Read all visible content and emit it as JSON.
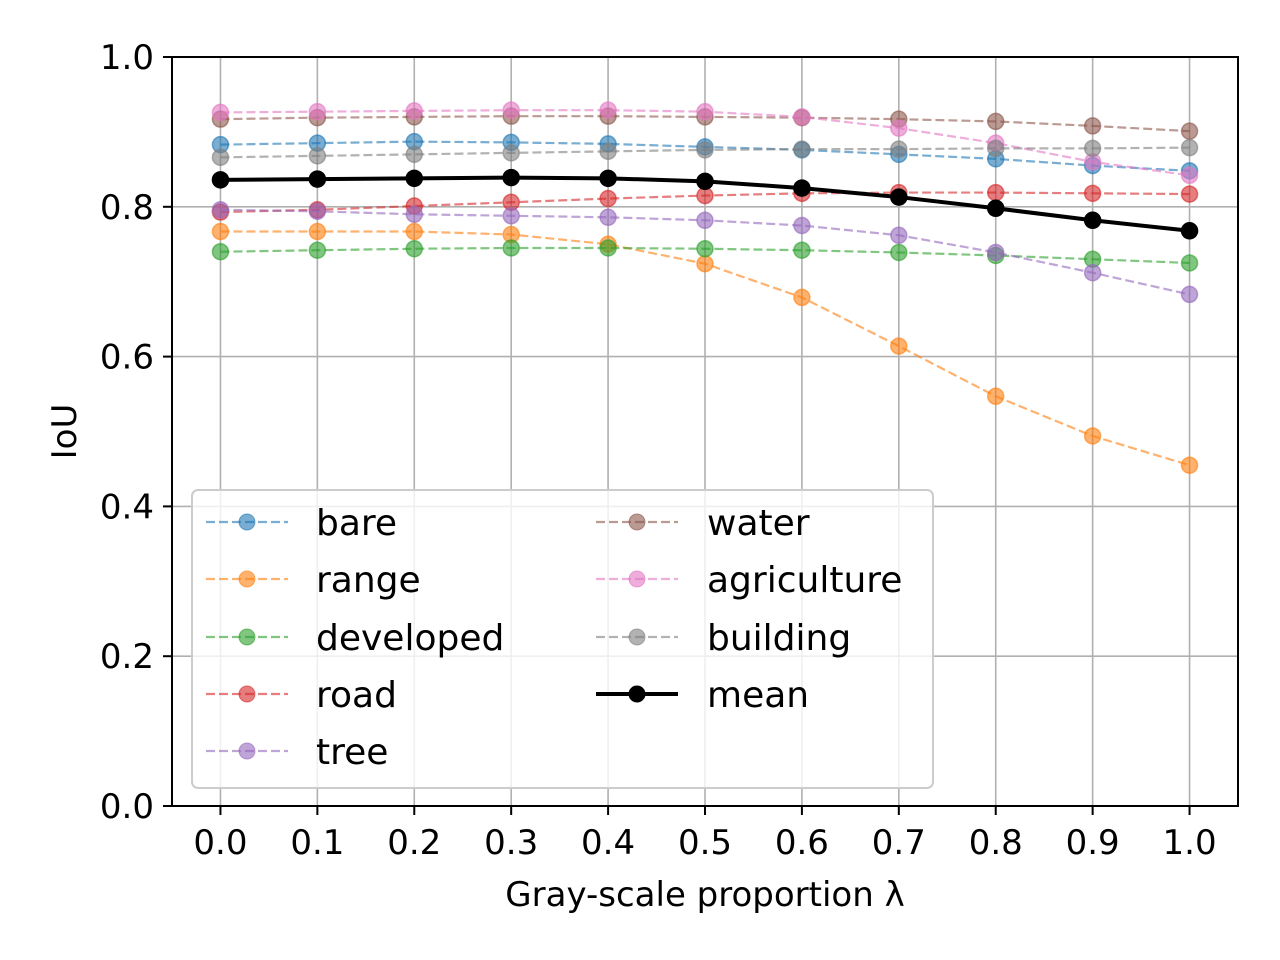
{
  "chart_data": {
    "type": "line",
    "xlabel": "Gray-scale proportion λ",
    "ylabel": "IoU",
    "xlim": [
      -0.05,
      1.05
    ],
    "ylim": [
      0.0,
      1.0
    ],
    "x": [
      0.0,
      0.1,
      0.2,
      0.3,
      0.4,
      0.5,
      0.6,
      0.7,
      0.8,
      0.9,
      1.0
    ],
    "x_tick_labels": [
      "0.0",
      "0.1",
      "0.2",
      "0.3",
      "0.4",
      "0.5",
      "0.6",
      "0.7",
      "0.8",
      "0.9",
      "1.0"
    ],
    "y_ticks": [
      0.0,
      0.2,
      0.4,
      0.6,
      0.8,
      1.0
    ],
    "y_tick_labels": [
      "0.0",
      "0.2",
      "0.4",
      "0.6",
      "0.8",
      "1.0"
    ],
    "grid": true,
    "legend_position": "lower-left",
    "series": [
      {
        "name": "bare",
        "color": "#1f77b4",
        "style": "dashed",
        "values": [
          0.883,
          0.885,
          0.887,
          0.886,
          0.884,
          0.88,
          0.876,
          0.87,
          0.864,
          0.855,
          0.848
        ]
      },
      {
        "name": "range",
        "color": "#ff7f0e",
        "style": "dashed",
        "values": [
          0.767,
          0.767,
          0.767,
          0.763,
          0.75,
          0.724,
          0.679,
          0.614,
          0.547,
          0.494,
          0.455
        ]
      },
      {
        "name": "developed",
        "color": "#2ca02c",
        "style": "dashed",
        "values": [
          0.74,
          0.742,
          0.744,
          0.745,
          0.745,
          0.744,
          0.742,
          0.739,
          0.735,
          0.73,
          0.725
        ]
      },
      {
        "name": "road",
        "color": "#d62728",
        "style": "dashed",
        "values": [
          0.793,
          0.796,
          0.801,
          0.806,
          0.811,
          0.815,
          0.818,
          0.819,
          0.819,
          0.818,
          0.817
        ]
      },
      {
        "name": "tree",
        "color": "#9467bd",
        "style": "dashed",
        "values": [
          0.796,
          0.794,
          0.79,
          0.788,
          0.786,
          0.782,
          0.775,
          0.762,
          0.739,
          0.712,
          0.683
        ]
      },
      {
        "name": "water",
        "color": "#8c564b",
        "style": "dashed",
        "values": [
          0.917,
          0.919,
          0.92,
          0.921,
          0.921,
          0.92,
          0.919,
          0.917,
          0.914,
          0.908,
          0.901
        ]
      },
      {
        "name": "agriculture",
        "color": "#e377c2",
        "style": "dashed",
        "values": [
          0.926,
          0.927,
          0.928,
          0.929,
          0.929,
          0.927,
          0.92,
          0.905,
          0.885,
          0.86,
          0.842
        ]
      },
      {
        "name": "building",
        "color": "#7f7f7f",
        "style": "dashed",
        "values": [
          0.866,
          0.868,
          0.87,
          0.872,
          0.874,
          0.876,
          0.877,
          0.877,
          0.878,
          0.878,
          0.879
        ]
      },
      {
        "name": "mean",
        "color": "#000000",
        "style": "solid",
        "values": [
          0.836,
          0.837,
          0.838,
          0.839,
          0.838,
          0.834,
          0.825,
          0.813,
          0.798,
          0.782,
          0.768
        ]
      }
    ]
  }
}
